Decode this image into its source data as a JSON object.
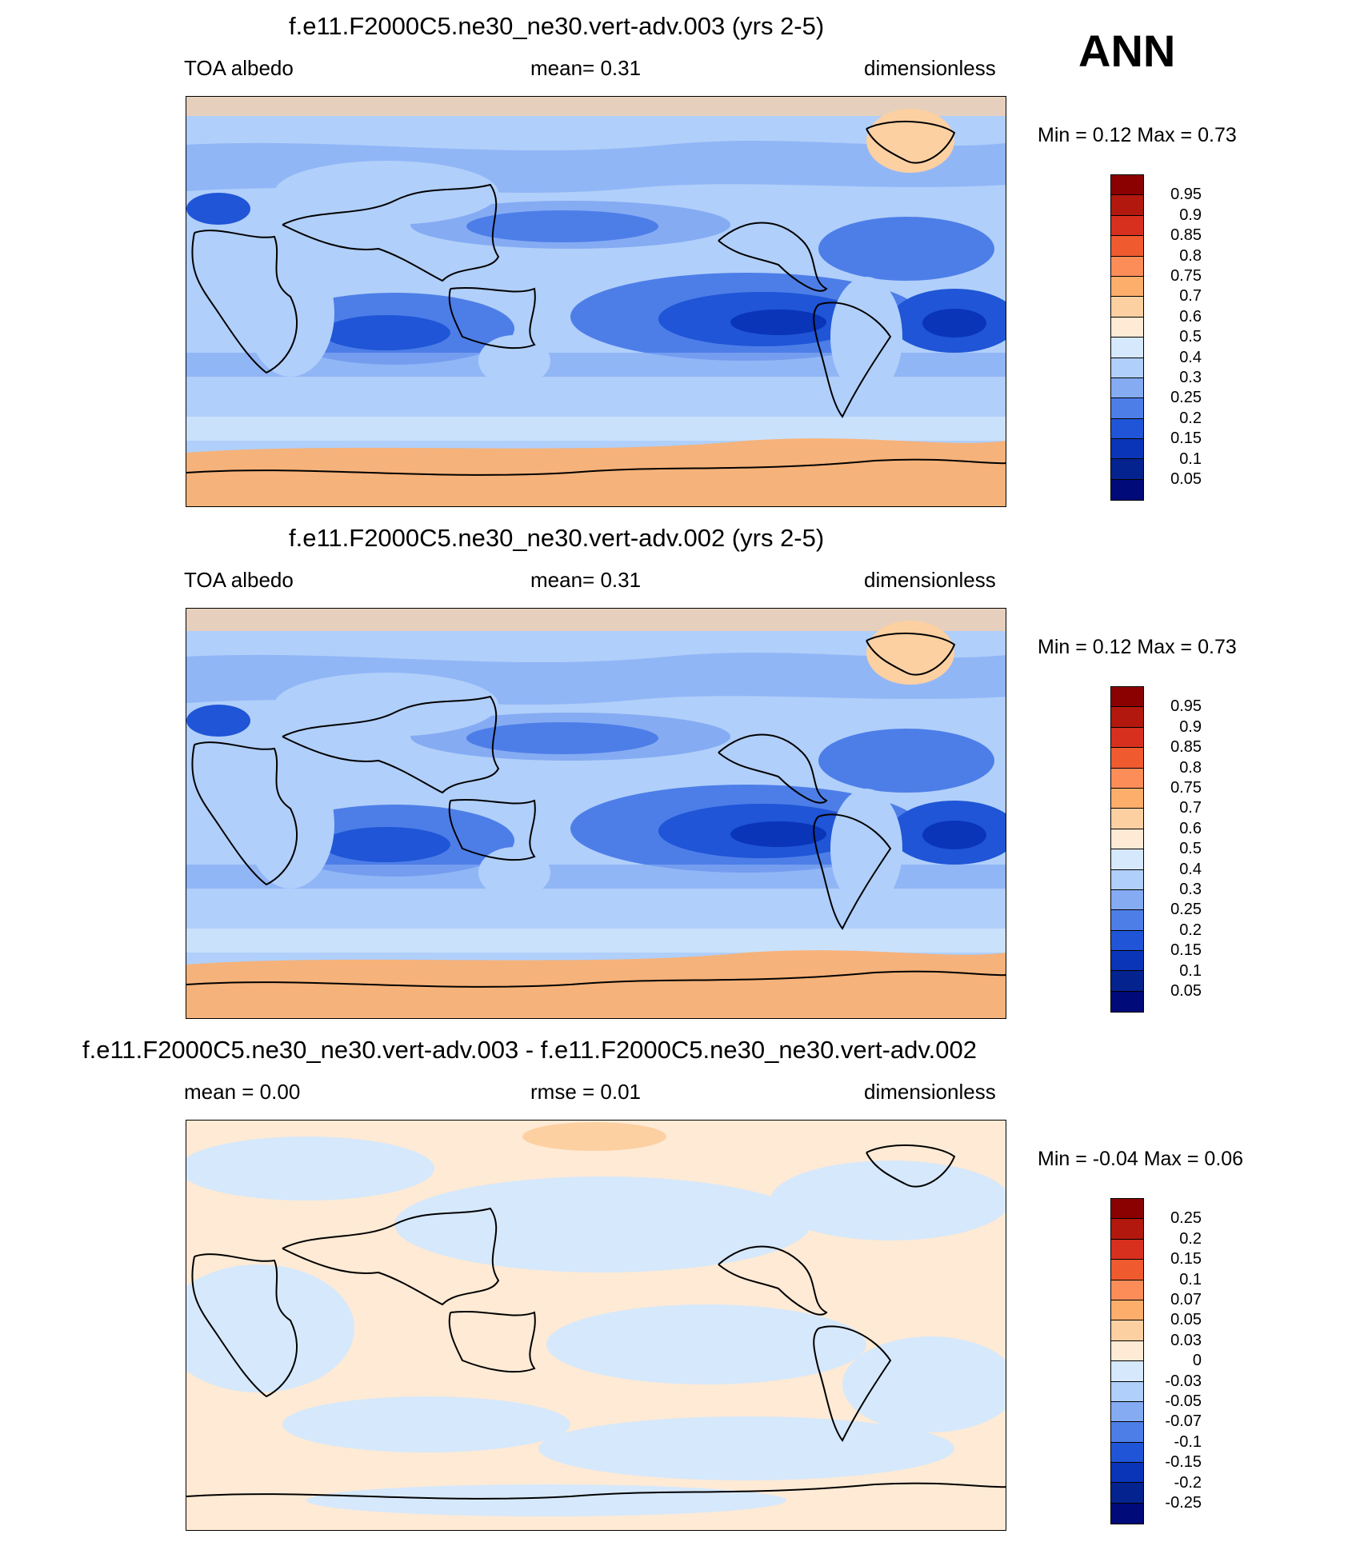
{
  "season": "ANN",
  "panels": [
    {
      "title": "f.e11.F2000C5.ne30_ne30.vert-adv.003 (yrs 2-5)",
      "left": "TOA albedo",
      "center": "mean=   0.31",
      "right": "dimensionless",
      "minmax": "Min =   0.12 Max =   0.73",
      "colorbar": {
        "labels": [
          "0.95",
          "0.9",
          "0.85",
          "0.8",
          "0.75",
          "0.7",
          "0.6",
          "0.5",
          "0.4",
          "0.3",
          "0.25",
          "0.2",
          "0.15",
          "0.1",
          "0.05"
        ],
        "colors": [
          "#8b0000",
          "#b2180e",
          "#d7301f",
          "#ef5a2e",
          "#fc8d59",
          "#fdae6b",
          "#fdd0a2",
          "#feead5",
          "#d6e8fb",
          "#b0cffa",
          "#85abf3",
          "#4d7ee8",
          "#1f55d6",
          "#0a35b8",
          "#04238f",
          "#000a78"
        ]
      }
    },
    {
      "title": "f.e11.F2000C5.ne30_ne30.vert-adv.002 (yrs 2-5)",
      "left": "TOA albedo",
      "center": "mean=   0.31",
      "right": "dimensionless",
      "minmax": "Min =   0.12 Max =   0.73",
      "colorbar": {
        "labels": [
          "0.95",
          "0.9",
          "0.85",
          "0.8",
          "0.75",
          "0.7",
          "0.6",
          "0.5",
          "0.4",
          "0.3",
          "0.25",
          "0.2",
          "0.15",
          "0.1",
          "0.05"
        ],
        "colors": [
          "#8b0000",
          "#b2180e",
          "#d7301f",
          "#ef5a2e",
          "#fc8d59",
          "#fdae6b",
          "#fdd0a2",
          "#feead5",
          "#d6e8fb",
          "#b0cffa",
          "#85abf3",
          "#4d7ee8",
          "#1f55d6",
          "#0a35b8",
          "#04238f",
          "#000a78"
        ]
      }
    },
    {
      "title": "f.e11.F2000C5.ne30_ne30.vert-adv.003 - f.e11.F2000C5.ne30_ne30.vert-adv.002",
      "left": "mean =   0.00",
      "center": "rmse =   0.01",
      "right": "dimensionless",
      "minmax": "Min =  -0.04 Max =   0.06",
      "colorbar": {
        "labels": [
          "0.25",
          "0.2",
          "0.15",
          "0.1",
          "0.07",
          "0.05",
          "0.03",
          "0",
          "-0.03",
          "-0.05",
          "-0.07",
          "-0.1",
          "-0.15",
          "-0.2",
          "-0.25"
        ],
        "colors": [
          "#8b0000",
          "#b2180e",
          "#d7301f",
          "#ef5a2e",
          "#fc8d59",
          "#fdae6b",
          "#fdd0a2",
          "#feead5",
          "#d6e8fb",
          "#b0cffa",
          "#85abf3",
          "#4d7ee8",
          "#1f55d6",
          "#0a35b8",
          "#04238f",
          "#000a78"
        ]
      }
    }
  ]
}
